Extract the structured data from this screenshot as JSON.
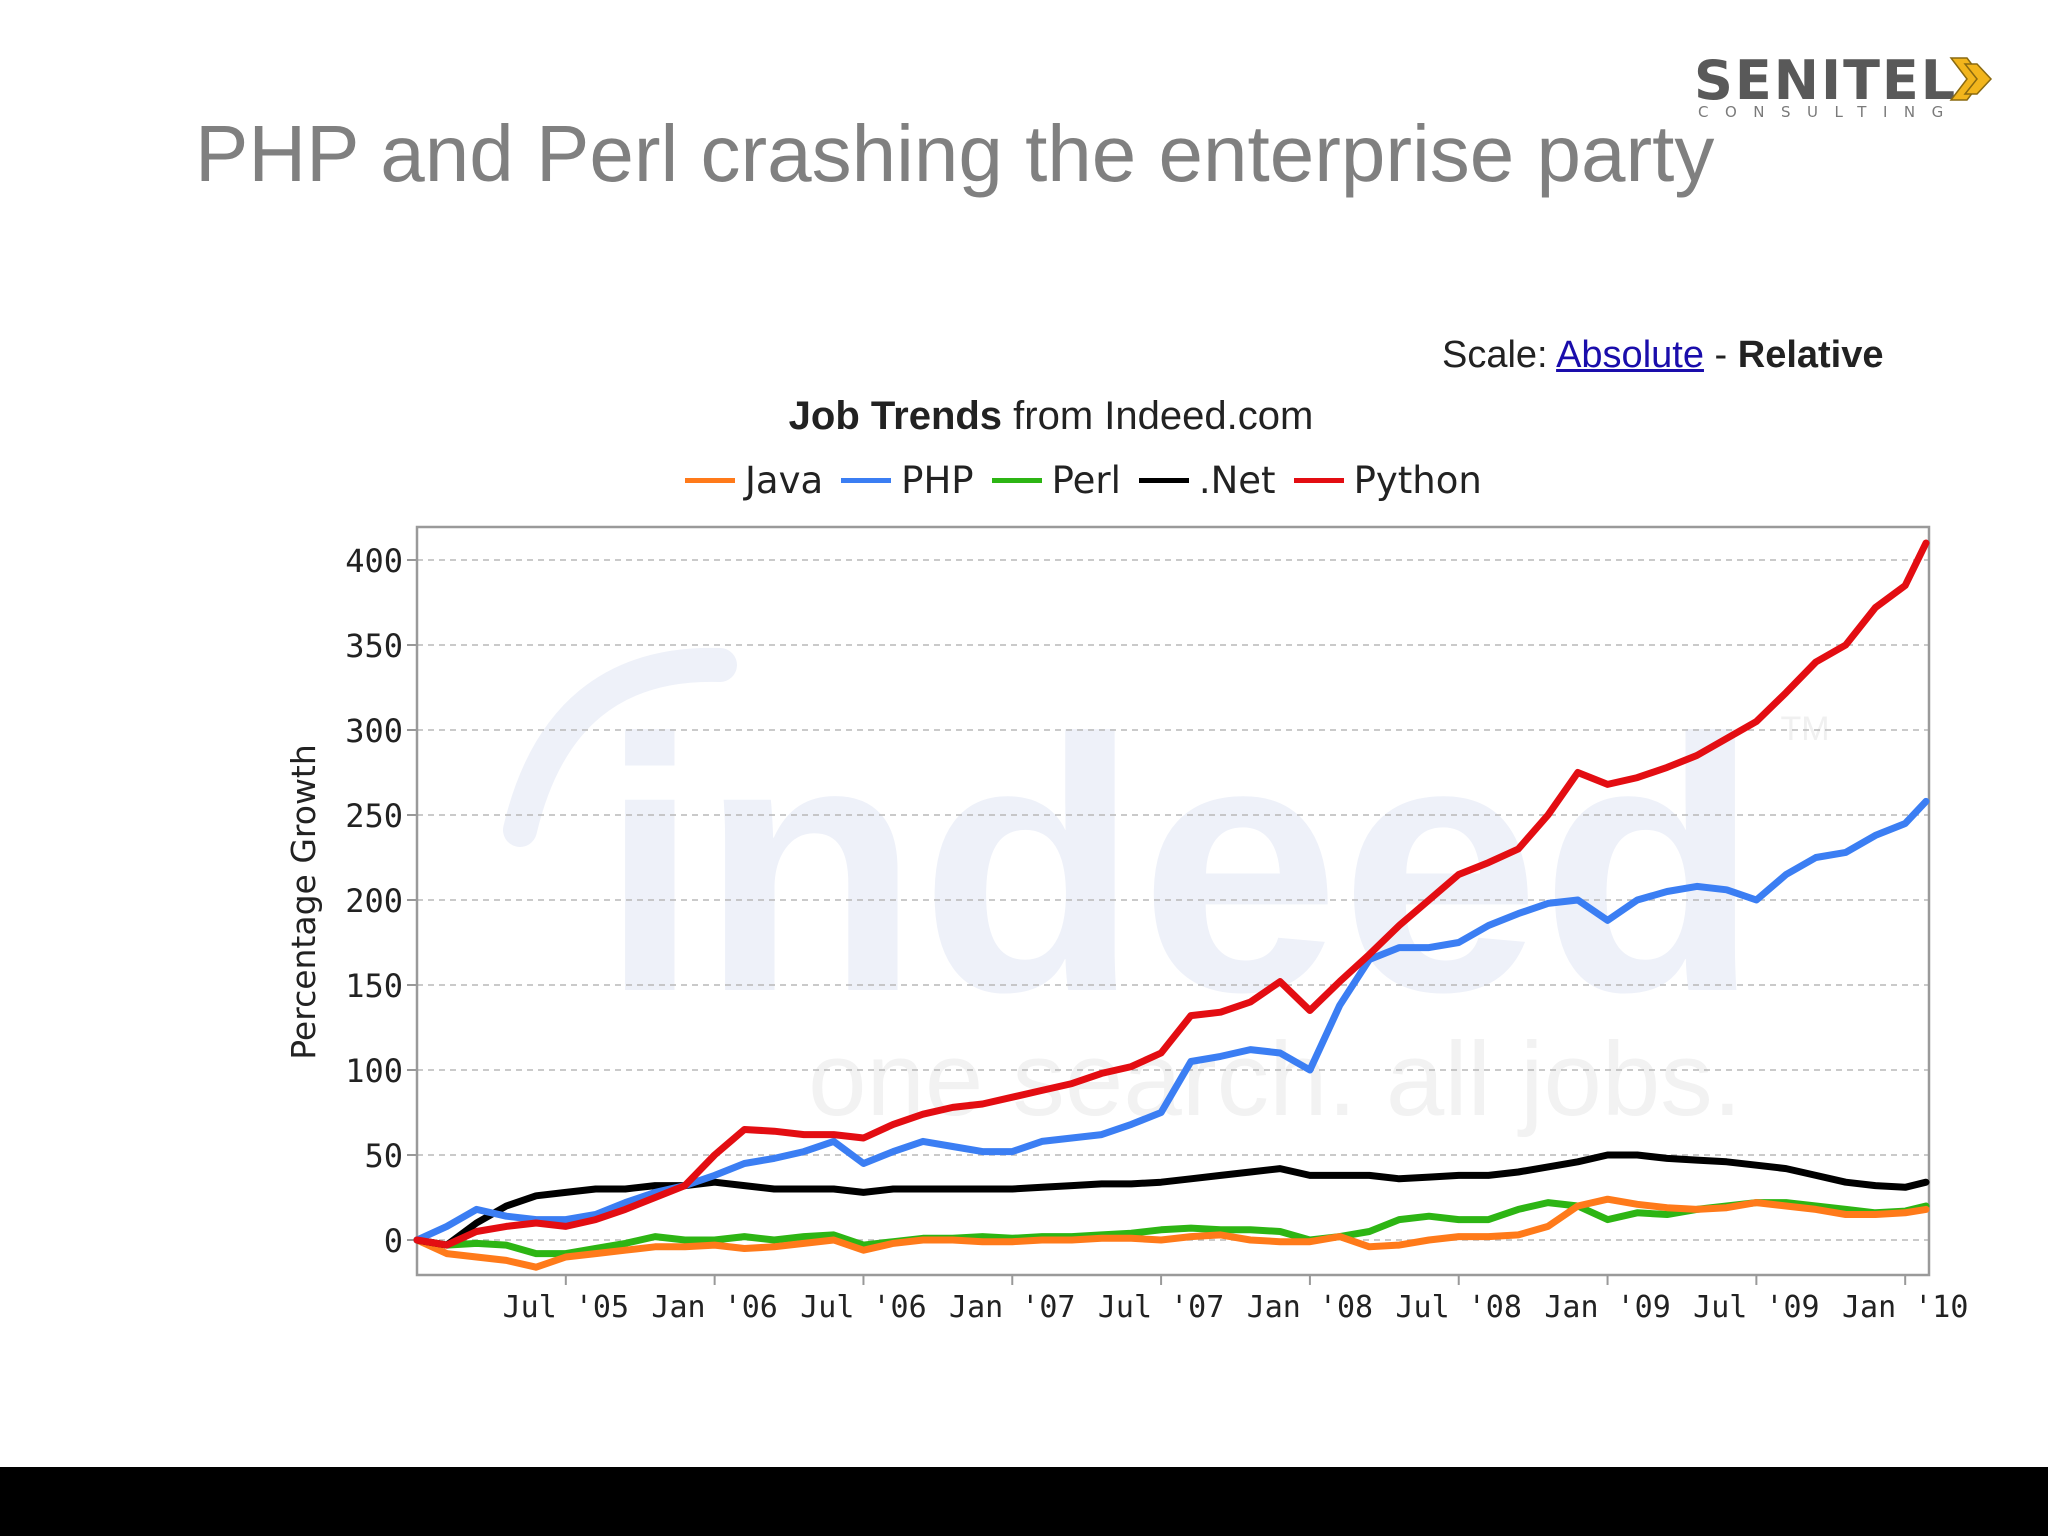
{
  "slide": {
    "title": "PHP and Perl crashing the enterprise party"
  },
  "logo": {
    "word": "SENITEL",
    "sub": "CONSULTING",
    "accent_color": "#f2b51c"
  },
  "scale": {
    "prefix": "Scale: ",
    "absolute": "Absolute",
    "separator": " - ",
    "relative": "Relative"
  },
  "chart_data": {
    "type": "line",
    "title_bold": "Job Trends",
    "title_rest": " from Indeed.com",
    "ylabel": "Percentage Growth",
    "xlabel": "",
    "ylim": [
      -20,
      420
    ],
    "xlim": [
      2005.0,
      2010.08
    ],
    "yticks": [
      0,
      50,
      100,
      150,
      200,
      250,
      300,
      350,
      400
    ],
    "xticks": [
      {
        "label": "Jul '05",
        "x": 2005.5
      },
      {
        "label": "Jan '06",
        "x": 2006.0
      },
      {
        "label": "Jul '06",
        "x": 2006.5
      },
      {
        "label": "Jan '07",
        "x": 2007.0
      },
      {
        "label": "Jul '07",
        "x": 2007.5
      },
      {
        "label": "Jan '08",
        "x": 2008.0
      },
      {
        "label": "Jul '08",
        "x": 2008.5
      },
      {
        "label": "Jan '09",
        "x": 2009.0
      },
      {
        "label": "Jul '09",
        "x": 2009.5
      },
      {
        "label": "Jan '10",
        "x": 2010.0
      }
    ],
    "grid": true,
    "watermark_main": "indeed",
    "watermark_sub": "one search. all jobs.",
    "watermark_tm": "TM",
    "x": [
      2005.0,
      2005.1,
      2005.2,
      2005.3,
      2005.4,
      2005.5,
      2005.6,
      2005.7,
      2005.8,
      2005.9,
      2006.0,
      2006.1,
      2006.2,
      2006.3,
      2006.4,
      2006.5,
      2006.6,
      2006.7,
      2006.8,
      2006.9,
      2007.0,
      2007.1,
      2007.2,
      2007.3,
      2007.4,
      2007.5,
      2007.6,
      2007.7,
      2007.8,
      2007.9,
      2008.0,
      2008.1,
      2008.2,
      2008.3,
      2008.4,
      2008.5,
      2008.6,
      2008.7,
      2008.8,
      2008.9,
      2009.0,
      2009.1,
      2009.2,
      2009.3,
      2009.4,
      2009.5,
      2009.6,
      2009.7,
      2009.8,
      2009.9,
      2010.0,
      2010.07
    ],
    "series": [
      {
        "name": "Java",
        "color": "#ff7a1a",
        "values": [
          0,
          -8,
          -10,
          -12,
          -16,
          -10,
          -8,
          -6,
          -4,
          -4,
          -3,
          -5,
          -4,
          -2,
          0,
          -6,
          -2,
          0,
          0,
          -1,
          -1,
          0,
          0,
          1,
          1,
          0,
          2,
          3,
          0,
          -1,
          -1,
          2,
          -4,
          -3,
          0,
          2,
          2,
          3,
          8,
          20,
          24,
          21,
          19,
          18,
          19,
          22,
          20,
          18,
          15,
          15,
          16,
          18
        ]
      },
      {
        "name": "PHP",
        "color": "#3b7ef3",
        "values": [
          0,
          8,
          18,
          14,
          12,
          12,
          15,
          22,
          28,
          32,
          38,
          45,
          48,
          52,
          58,
          45,
          52,
          58,
          55,
          52,
          52,
          58,
          60,
          62,
          68,
          75,
          105,
          108,
          112,
          110,
          100,
          138,
          165,
          172,
          172,
          175,
          185,
          192,
          198,
          200,
          188,
          200,
          205,
          208,
          206,
          200,
          215,
          225,
          228,
          238,
          245,
          258
        ]
      },
      {
        "name": "Perl",
        "color": "#2db514",
        "values": [
          0,
          -3,
          -2,
          -3,
          -8,
          -8,
          -5,
          -2,
          2,
          0,
          0,
          2,
          0,
          2,
          3,
          -3,
          -1,
          1,
          1,
          2,
          1,
          2,
          2,
          3,
          4,
          6,
          7,
          6,
          6,
          5,
          0,
          2,
          5,
          12,
          14,
          12,
          12,
          18,
          22,
          20,
          12,
          16,
          15,
          18,
          20,
          22,
          22,
          20,
          18,
          16,
          17,
          20
        ]
      },
      {
        "name": ".Net",
        "color": "#000000",
        "values": [
          0,
          -3,
          10,
          20,
          26,
          28,
          30,
          30,
          32,
          32,
          34,
          32,
          30,
          30,
          30,
          28,
          30,
          30,
          30,
          30,
          30,
          31,
          32,
          33,
          33,
          34,
          36,
          38,
          40,
          42,
          38,
          38,
          38,
          36,
          37,
          38,
          38,
          40,
          43,
          46,
          50,
          50,
          48,
          47,
          46,
          44,
          42,
          38,
          34,
          32,
          31,
          34
        ]
      },
      {
        "name": "Python",
        "color": "#e30d12",
        "values": [
          0,
          -3,
          5,
          8,
          10,
          8,
          12,
          18,
          25,
          32,
          50,
          65,
          64,
          62,
          62,
          60,
          68,
          74,
          78,
          80,
          84,
          88,
          92,
          98,
          102,
          110,
          132,
          134,
          140,
          152,
          135,
          152,
          168,
          185,
          200,
          215,
          222,
          230,
          250,
          275,
          268,
          272,
          278,
          285,
          295,
          305,
          322,
          340,
          350,
          372,
          385,
          410
        ]
      }
    ]
  }
}
